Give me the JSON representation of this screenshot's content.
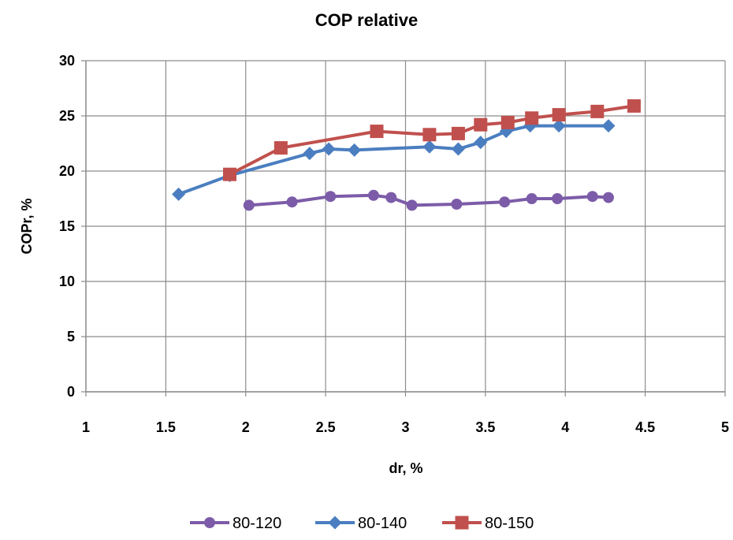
{
  "chart_data": {
    "type": "line",
    "title": "COP relative",
    "xlabel": "dr, %",
    "ylabel": "COPr, %",
    "xlim": [
      1,
      5
    ],
    "ylim": [
      0,
      30
    ],
    "xticks": [
      1,
      1.5,
      2,
      2.5,
      3,
      3.5,
      4,
      4.5,
      5
    ],
    "xtick_labels": [
      "1",
      "1.5",
      "2",
      "2.5",
      "3",
      "3.5",
      "4",
      "4.5",
      "5"
    ],
    "yticks": [
      0,
      5,
      10,
      15,
      20,
      25,
      30
    ],
    "ytick_labels": [
      "0",
      "5",
      "10",
      "15",
      "20",
      "25",
      "30"
    ],
    "grid": true,
    "legend_position": "bottom",
    "series": [
      {
        "name": "80-120",
        "color": "#7c5ca8",
        "marker": "circle",
        "x": [
          2.02,
          2.29,
          2.53,
          2.8,
          2.91,
          3.04,
          3.32,
          3.62,
          3.79,
          3.95,
          4.17,
          4.27
        ],
        "y": [
          16.9,
          17.2,
          17.7,
          17.8,
          17.6,
          16.9,
          17.0,
          17.2,
          17.5,
          17.5,
          17.7,
          17.6
        ]
      },
      {
        "name": "80-140",
        "color": "#4a7ec0",
        "marker": "diamond",
        "x": [
          1.58,
          1.9,
          2.4,
          2.52,
          2.68,
          3.15,
          3.33,
          3.47,
          3.63,
          3.78,
          3.96,
          4.27
        ],
        "y": [
          17.9,
          19.6,
          21.6,
          22.0,
          21.9,
          22.2,
          22.0,
          22.6,
          23.6,
          24.1,
          24.1,
          24.1
        ]
      },
      {
        "name": "80-150",
        "color": "#c0504d",
        "marker": "square",
        "x": [
          1.9,
          2.22,
          2.82,
          3.15,
          3.33,
          3.47,
          3.64,
          3.79,
          3.96,
          4.2,
          4.43
        ],
        "y": [
          19.7,
          22.1,
          23.6,
          23.3,
          23.4,
          24.2,
          24.4,
          24.8,
          25.1,
          25.4,
          25.9
        ]
      }
    ]
  }
}
